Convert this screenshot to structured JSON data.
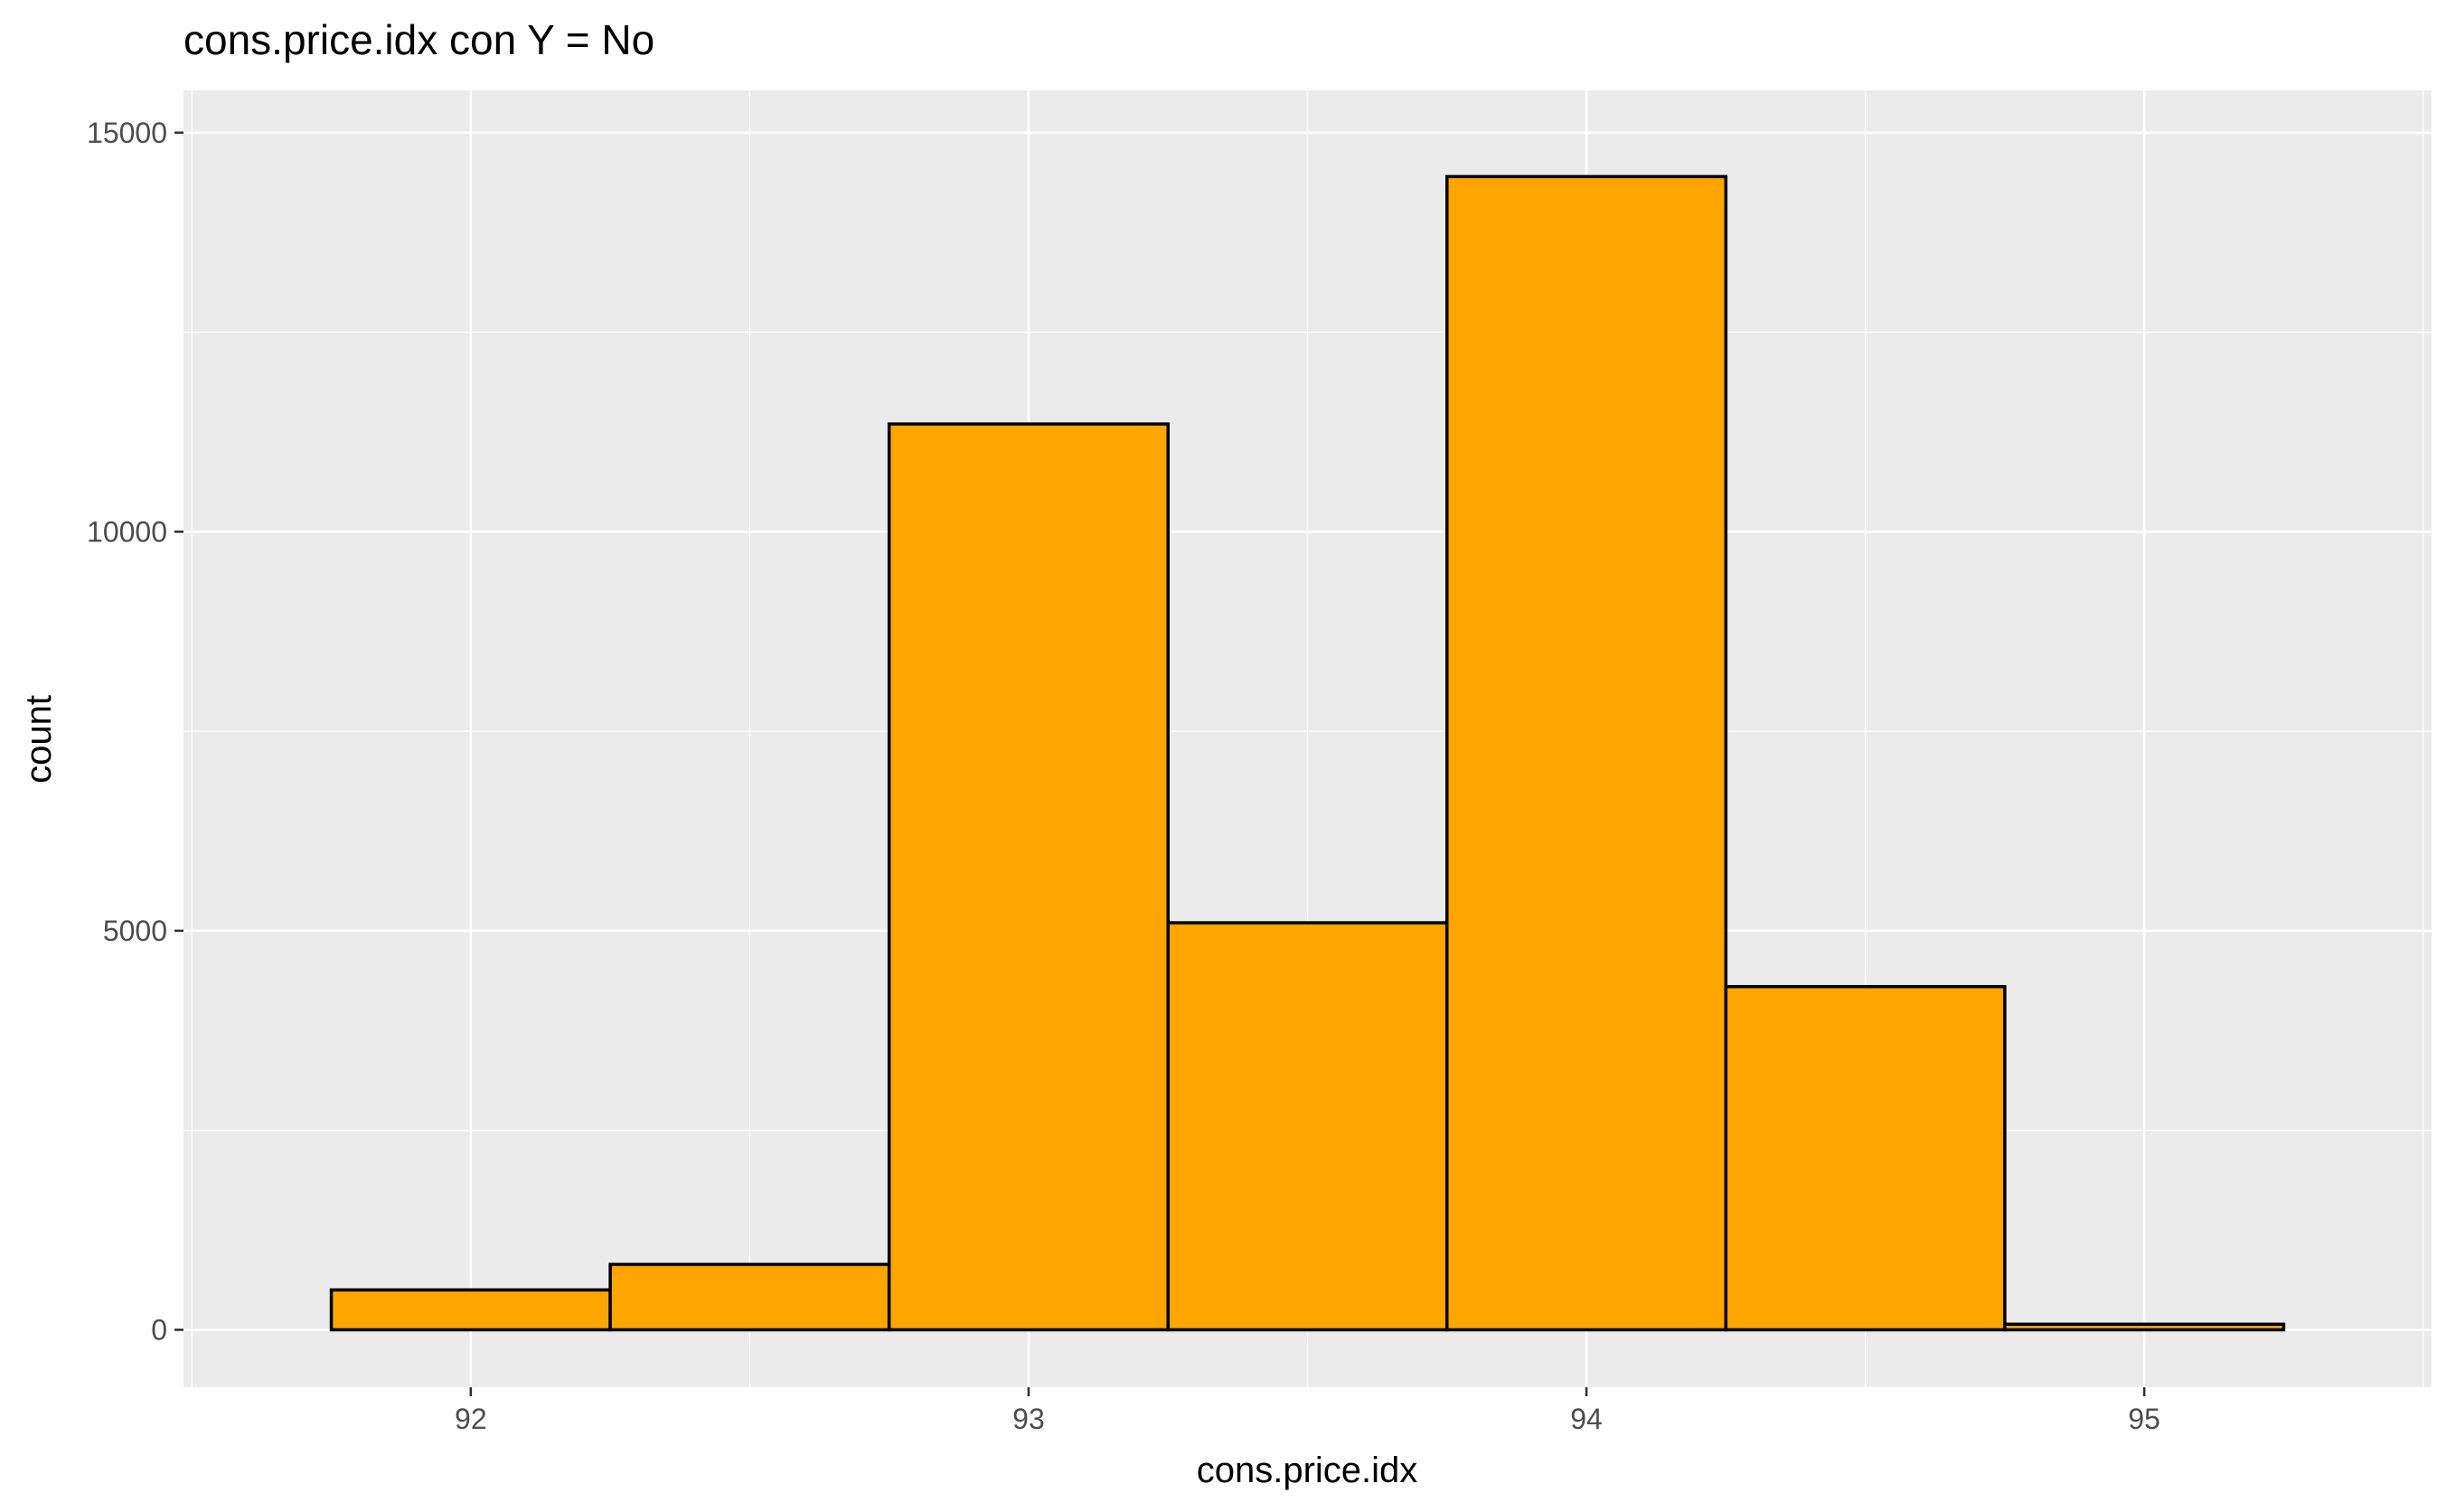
{
  "chart_data": {
    "type": "bar",
    "title": "cons.price.idx con Y = No",
    "xlabel": "cons.price.idx",
    "ylabel": "count",
    "bins": [
      {
        "x0": 91.75,
        "x1": 92.25,
        "count": 500
      },
      {
        "x0": 92.25,
        "x1": 92.75,
        "count": 820
      },
      {
        "x0": 92.75,
        "x1": 93.25,
        "count": 11350
      },
      {
        "x0": 93.25,
        "x1": 93.75,
        "count": 5100
      },
      {
        "x0": 93.75,
        "x1": 94.25,
        "count": 14450
      },
      {
        "x0": 94.25,
        "x1": 94.75,
        "count": 4300
      },
      {
        "x0": 94.75,
        "x1": 95.25,
        "count": 70
      }
    ],
    "xlim": [
      91.485,
      95.515
    ],
    "ylim": [
      -720,
      15530
    ],
    "xticks": [
      92,
      93,
      94,
      95
    ],
    "xtick_labels": [
      "92",
      "93",
      "94",
      "95"
    ],
    "yticks": [
      0,
      5000,
      10000,
      15000
    ],
    "ytick_labels": [
      "0",
      "5000",
      "10000",
      "15000"
    ],
    "grid": true,
    "legend": "none",
    "colors": {
      "bar_fill": "#FFA500",
      "bar_stroke": "#000000",
      "panel_background": "#EBEBEB",
      "grid_line": "#FFFFFF",
      "axis_text": "#4D4D4D",
      "title_text": "#000000"
    }
  }
}
